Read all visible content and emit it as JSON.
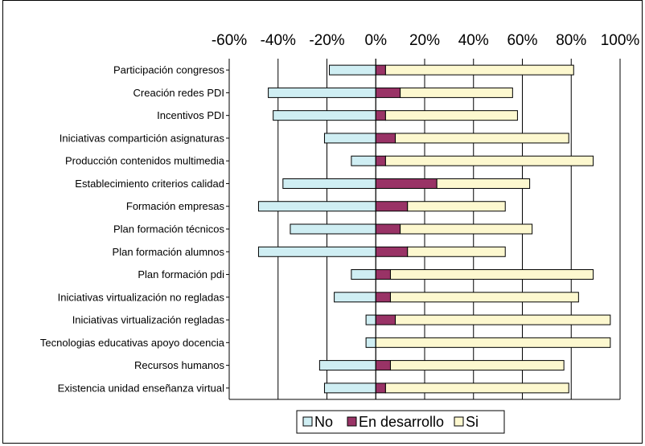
{
  "chart_data": {
    "type": "bar",
    "orientation": "horizontal",
    "stacked": true,
    "categories": [
      "Participación congresos",
      "Creación redes PDI",
      "Incentivos PDI",
      "Iniciativas compartición asignaturas",
      "Producción contenidos multimedia",
      "Establecimiento criterios calidad",
      "Formación empresas",
      "Plan formación técnicos",
      "Plan formación alumnos",
      "Plan formación pdi",
      "Iniciativas virtualización no regladas",
      "Iniciativas virtualización regladas",
      "Tecnologias educativas apoyo docencia",
      "Recursos humanos",
      "Existencia unidad enseñanza virtual"
    ],
    "series": [
      {
        "name": "No",
        "color": "#cfeef3",
        "values": [
          -19,
          -44,
          -42,
          -21,
          -10,
          -38,
          -48,
          -35,
          -48,
          -10,
          -17,
          -4,
          -4,
          -23,
          -21
        ]
      },
      {
        "name": "En desarrollo",
        "color": "#993366",
        "values": [
          4,
          10,
          4,
          8,
          4,
          25,
          13,
          10,
          13,
          6,
          6,
          8,
          0,
          6,
          4
        ]
      },
      {
        "name": "Si",
        "color": "#fdf8cf",
        "values": [
          77,
          46,
          54,
          71,
          85,
          38,
          40,
          54,
          40,
          83,
          77,
          88,
          96,
          71,
          75
        ]
      }
    ],
    "xlim": [
      -60,
      100
    ],
    "xticks": [
      "-60%",
      "-40%",
      "-20%",
      "0%",
      "20%",
      "40%",
      "60%",
      "80%",
      "100%"
    ],
    "xtick_values": [
      -60,
      -40,
      -20,
      0,
      20,
      40,
      60,
      80,
      100
    ],
    "grid": true,
    "legend_position": "bottom",
    "xaxis_position": "top",
    "title": "",
    "xlabel": "",
    "ylabel": ""
  },
  "legend": {
    "items": [
      {
        "label": "No",
        "color": "#cfeef3"
      },
      {
        "label": "En desarrollo",
        "color": "#993366"
      },
      {
        "label": "Si",
        "color": "#fdf8cf"
      }
    ]
  }
}
